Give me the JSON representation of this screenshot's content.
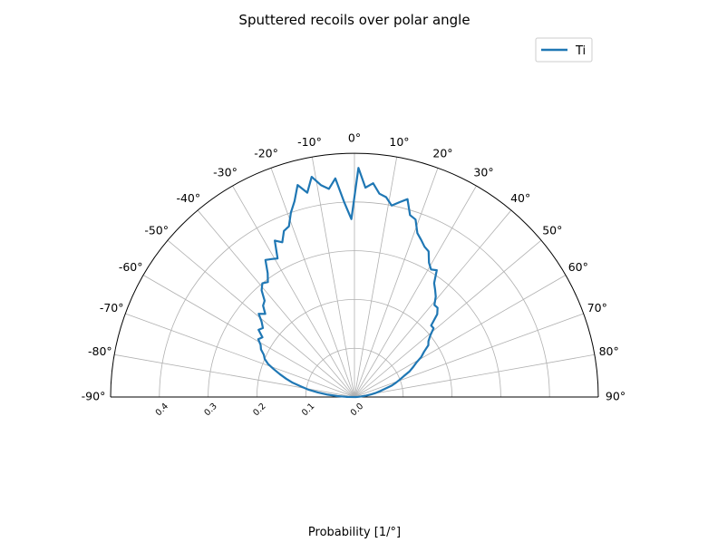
{
  "chart_data": {
    "type": "line",
    "projection": "polar-half",
    "title": "Sputtered recoils over polar angle",
    "xlabel": "Probability [1/°]",
    "ylabel": "",
    "theta_range_deg": [
      -90,
      90
    ],
    "r_range": [
      0,
      0.5
    ],
    "r_ticks": [
      0.0,
      0.1,
      0.2,
      0.3,
      0.4
    ],
    "r_tick_labels": [
      "0.0",
      "0.1",
      "0.2",
      "0.3",
      "0.4"
    ],
    "theta_ticks": [
      -90,
      -80,
      -70,
      -60,
      -50,
      -40,
      -30,
      -20,
      -10,
      0,
      10,
      20,
      30,
      40,
      50,
      60,
      70,
      80,
      90
    ],
    "theta_tick_labels": [
      "-90°",
      "-80°",
      "-70°",
      "-60°",
      "-50°",
      "-40°",
      "-30°",
      "-20°",
      "-10°",
      "0°",
      "10°",
      "20°",
      "30°",
      "40°",
      "50°",
      "60°",
      "70°",
      "80°",
      "90°"
    ],
    "grid": true,
    "legend_position": "top-right",
    "series": [
      {
        "name": "Ti",
        "color": "#1f77b4",
        "theta": [
          -89,
          -87,
          -85,
          -83,
          -81,
          -79,
          -77,
          -75,
          -73,
          -71,
          -69,
          -67,
          -65,
          -63,
          -61,
          -59,
          -57,
          -55,
          -53,
          -51,
          -49,
          -47,
          -45,
          -43,
          -41,
          -39,
          -37,
          -35,
          -33,
          -31,
          -29,
          -27,
          -25,
          -23,
          -21,
          -19,
          -17,
          -15,
          -13,
          -11,
          -9,
          -7,
          -5,
          -3,
          -1,
          1,
          3,
          5,
          7,
          9,
          11,
          13,
          15,
          17,
          19,
          21,
          23,
          25,
          27,
          29,
          31,
          33,
          35,
          37,
          39,
          41,
          43,
          45,
          47,
          49,
          51,
          53,
          55,
          57,
          59,
          61,
          63,
          65,
          67,
          69,
          71,
          73,
          75,
          77,
          79,
          81,
          83,
          85,
          87,
          89
        ],
        "r": [
          0.015,
          0.035,
          0.055,
          0.075,
          0.095,
          0.11,
          0.13,
          0.145,
          0.16,
          0.175,
          0.19,
          0.2,
          0.205,
          0.215,
          0.22,
          0.23,
          0.225,
          0.24,
          0.235,
          0.245,
          0.26,
          0.25,
          0.265,
          0.27,
          0.29,
          0.3,
          0.295,
          0.31,
          0.335,
          0.33,
          0.325,
          0.36,
          0.35,
          0.37,
          0.375,
          0.4,
          0.42,
          0.45,
          0.43,
          0.46,
          0.44,
          0.43,
          0.45,
          0.4,
          0.365,
          0.47,
          0.43,
          0.44,
          0.42,
          0.415,
          0.4,
          0.41,
          0.42,
          0.39,
          0.385,
          0.36,
          0.35,
          0.34,
          0.335,
          0.315,
          0.305,
          0.31,
          0.285,
          0.275,
          0.265,
          0.25,
          0.25,
          0.24,
          0.215,
          0.215,
          0.2,
          0.19,
          0.185,
          0.17,
          0.16,
          0.145,
          0.135,
          0.125,
          0.11,
          0.1,
          0.09,
          0.08,
          0.065,
          0.055,
          0.045,
          0.035,
          0.025,
          0.015,
          0.008,
          0.003
        ]
      }
    ]
  }
}
